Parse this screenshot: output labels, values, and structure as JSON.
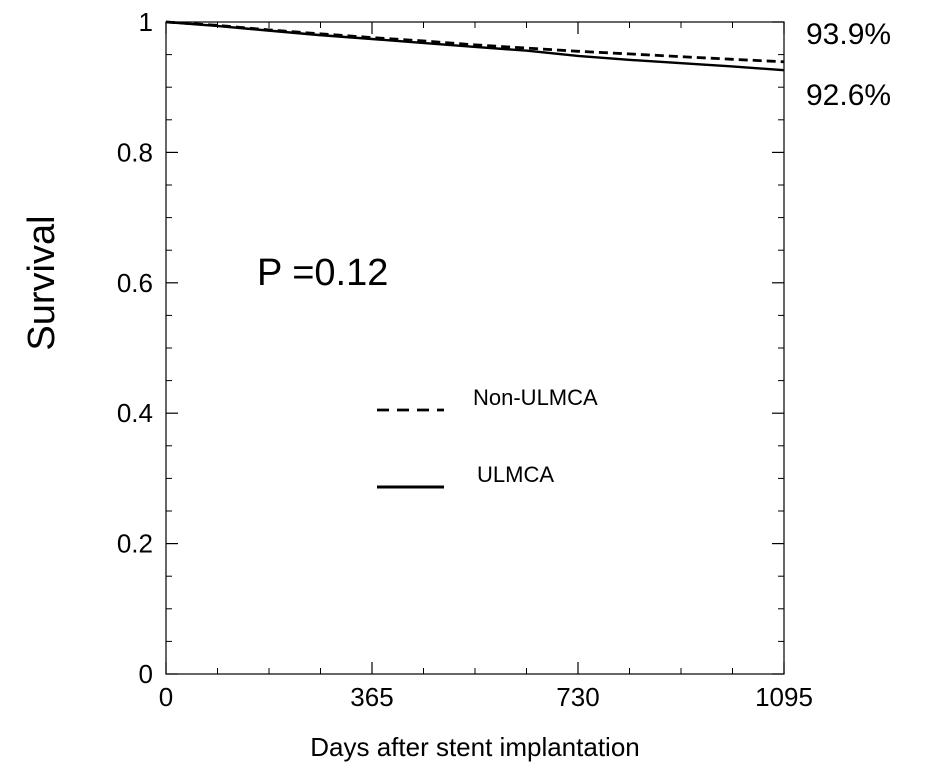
{
  "chart_data": {
    "type": "line",
    "xlabel": "Days after stent implantation",
    "ylabel": "Survival",
    "xlim": [
      0,
      1095
    ],
    "ylim": [
      0,
      1
    ],
    "x_ticks": [
      {
        "value": 0,
        "label": "0"
      },
      {
        "value": 365,
        "label": "365"
      },
      {
        "value": 730,
        "label": "730"
      },
      {
        "value": 1095,
        "label": "1095"
      }
    ],
    "y_ticks": [
      {
        "value": 0,
        "label": "0"
      },
      {
        "value": 0.2,
        "label": "0.2"
      },
      {
        "value": 0.4,
        "label": "0.4"
      },
      {
        "value": 0.6,
        "label": "0.6"
      },
      {
        "value": 0.8,
        "label": "0.8"
      },
      {
        "value": 1,
        "label": "1"
      }
    ],
    "series": [
      {
        "name": "Non-ULMCA",
        "style": "dashed",
        "color": "#000000",
        "end_label": "93.9%",
        "x": [
          0,
          90,
          180,
          270,
          365,
          455,
          545,
          640,
          730,
          820,
          910,
          1000,
          1095
        ],
        "y": [
          1.0,
          0.995,
          0.988,
          0.982,
          0.976,
          0.971,
          0.965,
          0.96,
          0.955,
          0.951,
          0.947,
          0.943,
          0.939
        ]
      },
      {
        "name": "ULMCA",
        "style": "solid",
        "color": "#000000",
        "end_label": "92.6%",
        "x": [
          0,
          90,
          180,
          270,
          365,
          455,
          545,
          640,
          730,
          820,
          910,
          1000,
          1095
        ],
        "y": [
          1.0,
          0.994,
          0.987,
          0.98,
          0.974,
          0.968,
          0.962,
          0.956,
          0.948,
          0.942,
          0.937,
          0.932,
          0.926
        ]
      }
    ],
    "annotation": "P =0.12",
    "legend_position": "center",
    "grid": false
  }
}
